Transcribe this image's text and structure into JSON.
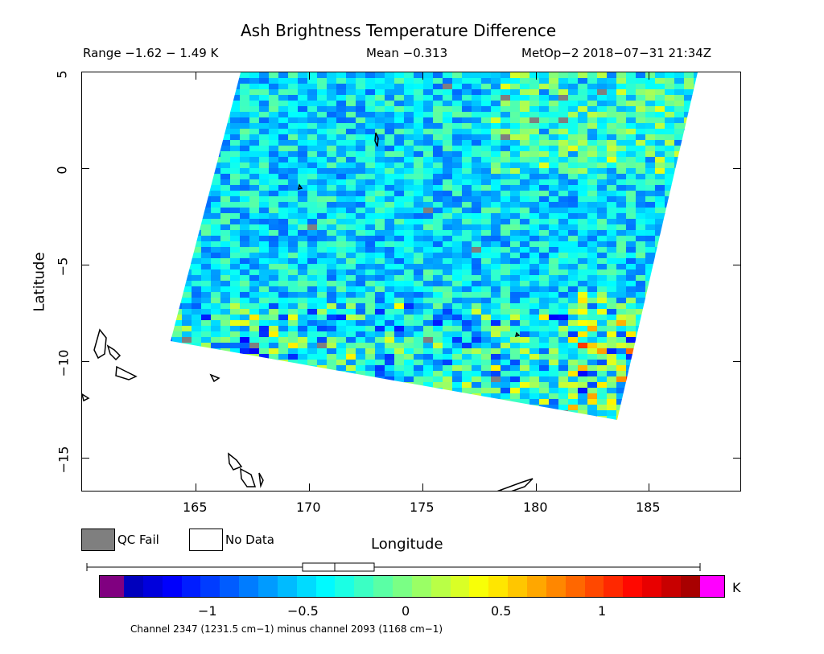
{
  "header": {
    "title": "Ash Brightness Temperature Difference",
    "range": "Range −1.62 − 1.49 K",
    "mean": "Mean −0.313",
    "source": "MetOp−2 2018−07−31 21:34Z"
  },
  "axes": {
    "xlabel": "Longitude",
    "ylabel": "Latitude",
    "x_ticks": [
      "165",
      "170",
      "175",
      "180",
      "185"
    ],
    "y_ticks": [
      "5",
      "0",
      "−5",
      "−10",
      "−15"
    ],
    "x_range": [
      160,
      189
    ],
    "y_range": [
      -16.7,
      5
    ]
  },
  "legend": {
    "qc_fail": "QC Fail",
    "no_data": "No Data",
    "qc_fail_color": "#7f7f7f",
    "no_data_color": "#ffffff"
  },
  "colorbar": {
    "unit": "K",
    "ticks": [
      "−1",
      "−0.5",
      "0",
      "0.5",
      "1"
    ],
    "range": [
      -1.55,
      1.5
    ],
    "under_color": "#800080",
    "over_color": "#ff00ff",
    "footnote": "Channel 2347 (1231.5 cm−1) minus channel 2093 (1168 cm−1)"
  },
  "colors": {
    "swath_base": "#33bbee",
    "coastline": "#000000"
  }
}
